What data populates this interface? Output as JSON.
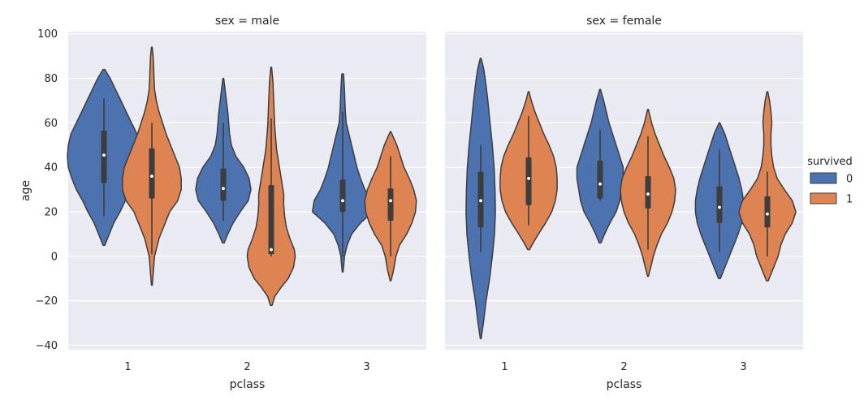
{
  "chart_data": {
    "type": "violin",
    "ylabel": "age",
    "xlabel": "pclass",
    "yticks": [
      -40,
      -20,
      0,
      20,
      40,
      60,
      80,
      100
    ],
    "ylim": [
      -42,
      101
    ],
    "categories": [
      "1",
      "2",
      "3"
    ],
    "legend": {
      "title": "survived",
      "placement": "center-right",
      "entries": [
        {
          "label": "0",
          "color": "#4c72b0"
        },
        {
          "label": "1",
          "color": "#dd8452"
        }
      ]
    },
    "panels": [
      {
        "title": "sex = male",
        "violins": [
          {
            "pclass": "1",
            "survived": "0",
            "min": 5,
            "max": 84,
            "q1": 33,
            "median": 45.5,
            "q3": 56.5,
            "whisker_low": 18,
            "whisker_high": 71,
            "profile": [
              [
                5,
                1
              ],
              [
                10,
                6
              ],
              [
                15,
                11
              ],
              [
                20,
                18
              ],
              [
                25,
                24
              ],
              [
                30,
                31
              ],
              [
                35,
                36
              ],
              [
                40,
                40
              ],
              [
                45,
                41
              ],
              [
                50,
                40
              ],
              [
                55,
                37
              ],
              [
                60,
                31
              ],
              [
                65,
                25
              ],
              [
                70,
                19
              ],
              [
                75,
                13
              ],
              [
                80,
                7
              ],
              [
                84,
                1
              ]
            ]
          },
          {
            "pclass": "1",
            "survived": "1",
            "min": -13,
            "max": 94,
            "q1": 26,
            "median": 36,
            "q3": 48.5,
            "whisker_low": 1,
            "whisker_high": 60,
            "profile": [
              [
                -13,
                0.5
              ],
              [
                -8,
                1.5
              ],
              [
                0,
                3
              ],
              [
                8,
                8
              ],
              [
                14,
                14
              ],
              [
                20,
                20
              ],
              [
                25,
                29
              ],
              [
                30,
                33
              ],
              [
                35,
                33
              ],
              [
                40,
                31
              ],
              [
                45,
                26
              ],
              [
                50,
                21
              ],
              [
                55,
                16
              ],
              [
                60,
                12
              ],
              [
                65,
                8
              ],
              [
                70,
                5
              ],
              [
                75,
                3
              ],
              [
                80,
                2.5
              ],
              [
                85,
                2
              ],
              [
                90,
                1.5
              ],
              [
                94,
                0.5
              ]
            ]
          },
          {
            "pclass": "2",
            "survived": "0",
            "min": 6,
            "max": 80,
            "q1": 25,
            "median": 30.5,
            "q3": 39.5,
            "whisker_low": 16,
            "whisker_high": 60,
            "profile": [
              [
                6,
                1
              ],
              [
                10,
                5
              ],
              [
                15,
                11
              ],
              [
                20,
                19
              ],
              [
                25,
                28
              ],
              [
                30,
                31
              ],
              [
                35,
                29
              ],
              [
                40,
                23
              ],
              [
                45,
                14
              ],
              [
                50,
                9
              ],
              [
                55,
                7
              ],
              [
                60,
                6
              ],
              [
                65,
                5
              ],
              [
                70,
                3.5
              ],
              [
                75,
                2
              ],
              [
                80,
                0.5
              ]
            ]
          },
          {
            "pclass": "2",
            "survived": "1",
            "min": -22,
            "max": 85,
            "q1": 1,
            "median": 3,
            "q3": 32,
            "whisker_low": 0,
            "whisker_high": 62,
            "profile": [
              [
                -22,
                1
              ],
              [
                -18,
                4
              ],
              [
                -14,
                11
              ],
              [
                -10,
                19
              ],
              [
                -5,
                25
              ],
              [
                0,
                27
              ],
              [
                3,
                26
              ],
              [
                8,
                21
              ],
              [
                13,
                17
              ],
              [
                18,
                15
              ],
              [
                23,
                14
              ],
              [
                28,
                14
              ],
              [
                33,
                12
              ],
              [
                38,
                10
              ],
              [
                43,
                8
              ],
              [
                48,
                6
              ],
              [
                53,
                5
              ],
              [
                58,
                4
              ],
              [
                63,
                3.5
              ],
              [
                68,
                3
              ],
              [
                73,
                2.5
              ],
              [
                78,
                2
              ],
              [
                85,
                0.5
              ]
            ]
          },
          {
            "pclass": "3",
            "survived": "0",
            "min": -7,
            "max": 82,
            "q1": 20,
            "median": 25,
            "q3": 34.5,
            "whisker_low": 0,
            "whisker_high": 65,
            "profile": [
              [
                -7,
                0.5
              ],
              [
                -3,
                1.5
              ],
              [
                0,
                2
              ],
              [
                5,
                5
              ],
              [
                10,
                10
              ],
              [
                15,
                20
              ],
              [
                20,
                34
              ],
              [
                25,
                32
              ],
              [
                30,
                25
              ],
              [
                35,
                20
              ],
              [
                40,
                16
              ],
              [
                45,
                13
              ],
              [
                50,
                10
              ],
              [
                55,
                7
              ],
              [
                60,
                4
              ],
              [
                65,
                3
              ],
              [
                70,
                2.5
              ],
              [
                75,
                2
              ],
              [
                82,
                1
              ]
            ]
          },
          {
            "pclass": "3",
            "survived": "1",
            "min": -11,
            "max": 56,
            "q1": 16,
            "median": 25,
            "q3": 30.5,
            "whisker_low": 0,
            "whisker_high": 45,
            "profile": [
              [
                -11,
                0.5
              ],
              [
                -6,
                3.5
              ],
              [
                0,
                6
              ],
              [
                5,
                10
              ],
              [
                10,
                18
              ],
              [
                15,
                24
              ],
              [
                20,
                28
              ],
              [
                25,
                29
              ],
              [
                30,
                26
              ],
              [
                35,
                21
              ],
              [
                40,
                15
              ],
              [
                45,
                11
              ],
              [
                50,
                7
              ],
              [
                56,
                0.5
              ]
            ]
          }
        ]
      },
      {
        "title": "sex = female",
        "violins": [
          {
            "pclass": "1",
            "survived": "0",
            "min": -37,
            "max": 89,
            "q1": 13,
            "median": 25,
            "q3": 38,
            "whisker_low": 2,
            "whisker_high": 50,
            "profile": [
              [
                -37,
                0.5
              ],
              [
                -30,
                3
              ],
              [
                -20,
                6
              ],
              [
                -10,
                10
              ],
              [
                0,
                13
              ],
              [
                10,
                15.5
              ],
              [
                20,
                16.5
              ],
              [
                30,
                16
              ],
              [
                40,
                15
              ],
              [
                50,
                13
              ],
              [
                60,
                10.5
              ],
              [
                70,
                8
              ],
              [
                80,
                5
              ],
              [
                85,
                3
              ],
              [
                89,
                0.5
              ]
            ]
          },
          {
            "pclass": "1",
            "survived": "1",
            "min": 3,
            "max": 74,
            "q1": 23,
            "median": 35,
            "q3": 44.5,
            "whisker_low": 14,
            "whisker_high": 63,
            "profile": [
              [
                3,
                1
              ],
              [
                6,
                5
              ],
              [
                10,
                11
              ],
              [
                15,
                19
              ],
              [
                20,
                26
              ],
              [
                25,
                30
              ],
              [
                30,
                32
              ],
              [
                35,
                32
              ],
              [
                40,
                31
              ],
              [
                45,
                28
              ],
              [
                50,
                23
              ],
              [
                55,
                17
              ],
              [
                60,
                12
              ],
              [
                65,
                7
              ],
              [
                70,
                3
              ],
              [
                74,
                0.5
              ]
            ]
          },
          {
            "pclass": "2",
            "survived": "0",
            "min": 6,
            "max": 75,
            "q1": 26,
            "median": 32.5,
            "q3": 43,
            "whisker_low": 25,
            "whisker_high": 57,
            "profile": [
              [
                6,
                1
              ],
              [
                10,
                5
              ],
              [
                15,
                11
              ],
              [
                20,
                18
              ],
              [
                25,
                22
              ],
              [
                30,
                24
              ],
              [
                35,
                26
              ],
              [
                40,
                26
              ],
              [
                45,
                22
              ],
              [
                50,
                18
              ],
              [
                55,
                14
              ],
              [
                60,
                10
              ],
              [
                65,
                7
              ],
              [
                70,
                4
              ],
              [
                75,
                0.5
              ]
            ]
          },
          {
            "pclass": "2",
            "survived": "1",
            "min": -9,
            "max": 66,
            "q1": 21.5,
            "median": 28,
            "q3": 36,
            "whisker_low": 3,
            "whisker_high": 54,
            "profile": [
              [
                -9,
                0.5
              ],
              [
                -5,
                3
              ],
              [
                0,
                6
              ],
              [
                5,
                10
              ],
              [
                10,
                15
              ],
              [
                15,
                22
              ],
              [
                20,
                27
              ],
              [
                25,
                30
              ],
              [
                30,
                31
              ],
              [
                35,
                29
              ],
              [
                40,
                24
              ],
              [
                45,
                18
              ],
              [
                50,
                13
              ],
              [
                55,
                8
              ],
              [
                60,
                4
              ],
              [
                66,
                0.5
              ]
            ]
          },
          {
            "pclass": "3",
            "survived": "0",
            "min": -10,
            "max": 60,
            "q1": 15,
            "median": 22,
            "q3": 31.5,
            "whisker_low": 2,
            "whisker_high": 48,
            "profile": [
              [
                -10,
                1
              ],
              [
                -5,
                6
              ],
              [
                0,
                11
              ],
              [
                5,
                16
              ],
              [
                10,
                21
              ],
              [
                15,
                25
              ],
              [
                20,
                27
              ],
              [
                25,
                27
              ],
              [
                30,
                25
              ],
              [
                35,
                22
              ],
              [
                40,
                18
              ],
              [
                45,
                14
              ],
              [
                50,
                10
              ],
              [
                55,
                6
              ],
              [
                60,
                0.5
              ]
            ]
          },
          {
            "pclass": "3",
            "survived": "1",
            "min": -11,
            "max": 74,
            "q1": 13,
            "median": 19,
            "q3": 27,
            "whisker_low": 0,
            "whisker_high": 38,
            "profile": [
              [
                -11,
                1
              ],
              [
                -6,
                6
              ],
              [
                0,
                12
              ],
              [
                5,
                15
              ],
              [
                10,
                20
              ],
              [
                15,
                28
              ],
              [
                20,
                32
              ],
              [
                25,
                28
              ],
              [
                30,
                19
              ],
              [
                35,
                11
              ],
              [
                40,
                7
              ],
              [
                45,
                5
              ],
              [
                50,
                4
              ],
              [
                55,
                4
              ],
              [
                60,
                5
              ],
              [
                65,
                4
              ],
              [
                70,
                2.5
              ],
              [
                74,
                0.5
              ]
            ]
          }
        ]
      }
    ]
  }
}
